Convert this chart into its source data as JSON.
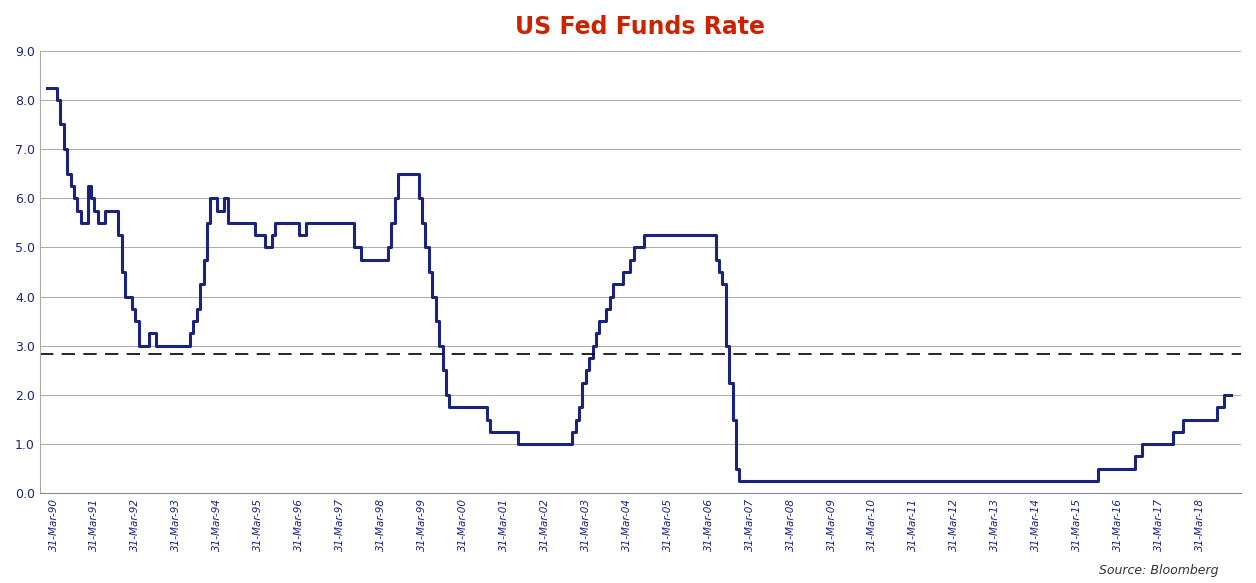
{
  "title": "US Fed Funds Rate",
  "title_color": "#CC2200",
  "title_fontsize": 17,
  "source_text": "Source: Bloomberg",
  "line_color": "#1A237E",
  "line_width": 2.2,
  "dashed_line_value": 2.83,
  "dashed_line_color": "#000000",
  "background_color": "#FFFFFF",
  "grid_color": "#AAAAAA",
  "ylim": [
    0.0,
    9.0
  ],
  "yticks": [
    0.0,
    1.0,
    2.0,
    3.0,
    4.0,
    5.0,
    6.0,
    7.0,
    8.0,
    9.0
  ],
  "monthly_values": [
    8.25,
    8.25,
    8.25,
    8.0,
    7.5,
    7.0,
    6.5,
    6.25,
    6.0,
    5.75,
    5.5,
    5.5,
    6.25,
    6.0,
    5.75,
    5.5,
    5.5,
    5.75,
    5.75,
    5.75,
    5.75,
    5.25,
    4.5,
    4.0,
    4.0,
    3.75,
    3.5,
    3.0,
    3.0,
    3.0,
    3.25,
    3.25,
    3.0,
    3.0,
    3.0,
    3.0,
    3.0,
    3.0,
    3.0,
    3.0,
    3.0,
    3.0,
    3.25,
    3.5,
    3.75,
    4.25,
    4.75,
    5.5,
    6.0,
    6.0,
    5.75,
    5.75,
    6.0,
    5.5,
    5.5,
    5.5,
    5.5,
    5.5,
    5.5,
    5.5,
    5.5,
    5.25,
    5.25,
    5.25,
    5.0,
    5.0,
    5.25,
    5.5,
    5.5,
    5.5,
    5.5,
    5.5,
    5.5,
    5.5,
    5.25,
    5.25,
    5.5,
    5.5,
    5.5,
    5.5,
    5.5,
    5.5,
    5.5,
    5.5,
    5.5,
    5.5,
    5.5,
    5.5,
    5.5,
    5.5,
    5.0,
    5.0,
    4.75,
    4.75,
    4.75,
    4.75,
    4.75,
    4.75,
    4.75,
    4.75,
    5.0,
    5.5,
    6.0,
    6.5,
    6.5,
    6.5,
    6.5,
    6.5,
    6.5,
    6.0,
    5.5,
    5.0,
    4.5,
    4.0,
    3.5,
    3.0,
    2.5,
    2.0,
    1.75,
    1.75,
    1.75,
    1.75,
    1.75,
    1.75,
    1.75,
    1.75,
    1.75,
    1.75,
    1.75,
    1.5,
    1.25,
    1.25,
    1.25,
    1.25,
    1.25,
    1.25,
    1.25,
    1.25,
    1.0,
    1.0,
    1.0,
    1.0,
    1.0,
    1.0,
    1.0,
    1.0,
    1.0,
    1.0,
    1.0,
    1.0,
    1.0,
    1.0,
    1.0,
    1.0,
    1.25,
    1.5,
    1.75,
    2.25,
    2.5,
    2.75,
    3.0,
    3.25,
    3.5,
    3.5,
    3.75,
    4.0,
    4.25,
    4.25,
    4.25,
    4.5,
    4.5,
    4.75,
    5.0,
    5.0,
    5.0,
    5.25,
    5.25,
    5.25,
    5.25,
    5.25,
    5.25,
    5.25,
    5.25,
    5.25,
    5.25,
    5.25,
    5.25,
    5.25,
    5.25,
    5.25,
    5.25,
    5.25,
    5.25,
    5.25,
    5.25,
    5.25,
    4.75,
    4.5,
    4.25,
    3.0,
    2.25,
    1.5,
    0.5,
    0.25,
    0.25,
    0.25,
    0.25,
    0.25,
    0.25,
    0.25,
    0.25,
    0.25,
    0.25,
    0.25,
    0.25,
    0.25,
    0.25,
    0.25,
    0.25,
    0.25,
    0.25,
    0.25,
    0.25,
    0.25,
    0.25,
    0.25,
    0.25,
    0.25,
    0.25,
    0.25,
    0.25,
    0.25,
    0.25,
    0.25,
    0.25,
    0.25,
    0.25,
    0.25,
    0.25,
    0.25,
    0.25,
    0.25,
    0.25,
    0.25,
    0.25,
    0.25,
    0.25,
    0.25,
    0.25,
    0.25,
    0.25,
    0.25,
    0.25,
    0.25,
    0.25,
    0.25,
    0.25,
    0.25,
    0.25,
    0.25,
    0.25,
    0.25,
    0.25,
    0.25,
    0.25,
    0.25,
    0.25,
    0.25,
    0.25,
    0.25,
    0.25,
    0.25,
    0.25,
    0.25,
    0.25,
    0.25,
    0.25,
    0.25,
    0.25,
    0.25,
    0.25,
    0.25,
    0.25,
    0.25,
    0.25,
    0.25,
    0.25,
    0.25,
    0.25,
    0.25,
    0.25,
    0.25,
    0.25,
    0.25,
    0.25,
    0.25,
    0.25,
    0.25,
    0.25,
    0.25,
    0.25,
    0.25,
    0.25,
    0.25,
    0.25,
    0.25,
    0.25,
    0.25,
    0.5,
    0.5,
    0.5,
    0.5,
    0.5,
    0.5,
    0.5,
    0.5,
    0.5,
    0.5,
    0.5,
    0.75,
    0.75,
    1.0,
    1.0,
    1.0,
    1.0,
    1.0,
    1.0,
    1.0,
    1.0,
    1.0,
    1.25,
    1.25,
    1.25,
    1.5,
    1.5,
    1.5,
    1.5,
    1.5,
    1.5,
    1.5,
    1.5,
    1.5,
    1.5,
    1.75,
    1.75,
    2.0,
    2.0,
    2.0
  ],
  "march_indices": [
    2,
    14,
    26,
    38,
    50,
    62,
    74,
    86,
    98,
    110,
    122,
    134,
    146,
    158,
    170,
    182,
    194,
    206,
    218,
    230,
    242,
    254,
    266,
    278,
    290,
    302,
    314,
    326,
    338
  ],
  "labels": [
    "31-Mar-90",
    "31-Mar-91",
    "31-Mar-92",
    "31-Mar-93",
    "31-Mar-94",
    "31-Mar-95",
    "31-Mar-96",
    "31-Mar-97",
    "31-Mar-98",
    "31-Mar-99",
    "31-Mar-00",
    "31-Mar-01",
    "31-Mar-02",
    "31-Mar-03",
    "31-Mar-04",
    "31-Mar-05",
    "31-Mar-06",
    "31-Mar-07",
    "31-Mar-08",
    "31-Mar-09",
    "31-Mar-10",
    "31-Mar-11",
    "31-Mar-12",
    "31-Mar-13",
    "31-Mar-14",
    "31-Mar-15",
    "31-Mar-16",
    "31-Mar-17",
    "31-Mar-18"
  ]
}
